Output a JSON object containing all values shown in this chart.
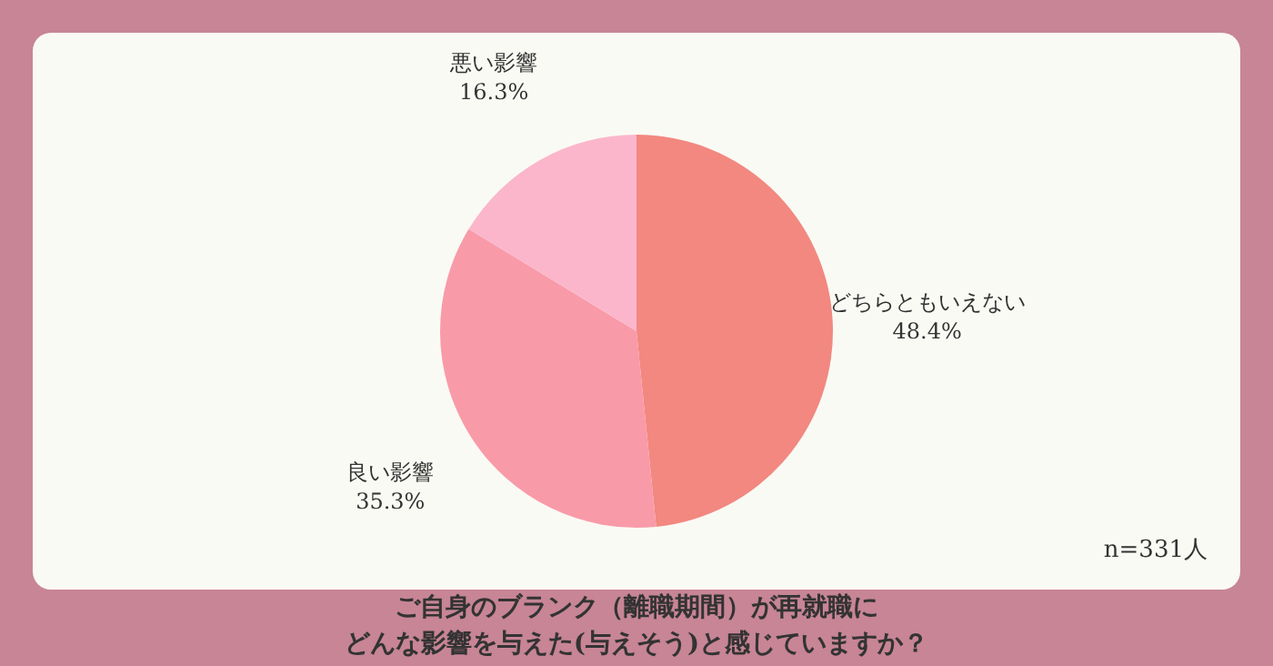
{
  "chart_data": {
    "type": "pie",
    "title": "ご自身のブランク（離職期間）が再就職に",
    "subtitle": "どんな影響を与えた(与えそう)と感じていますか？",
    "categories": [
      "どちらともいえない",
      "良い影響",
      "悪い影響"
    ],
    "values": [
      48.4,
      35.3,
      16.3
    ],
    "value_labels": [
      "48.4%",
      "35.3%",
      "16.3%"
    ],
    "colors": [
      "#f28880",
      "#f99aa8",
      "#fbb6cc"
    ],
    "annotations": [
      "n=331人"
    ]
  }
}
